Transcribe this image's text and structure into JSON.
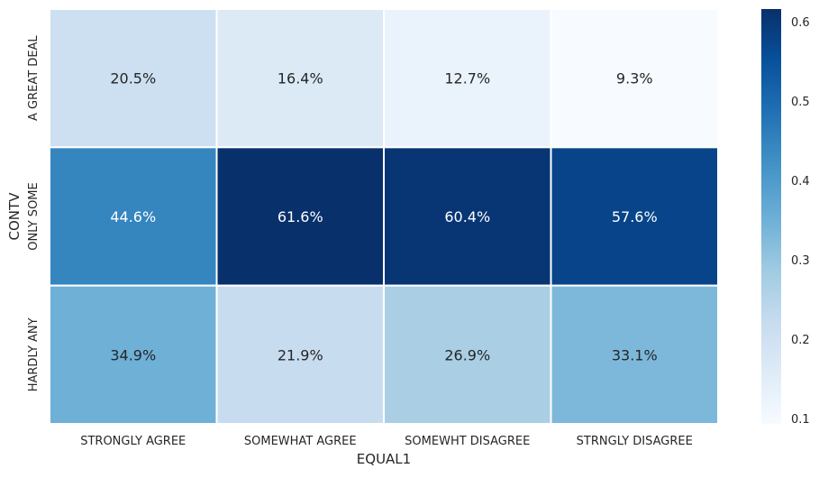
{
  "chart_data": {
    "type": "heatmap",
    "title": "",
    "xlabel": "EQUAL1",
    "ylabel": "CONTV",
    "x_categories": [
      "STRONGLY AGREE",
      "SOMEWHAT AGREE",
      "SOMEWHT DISAGREE",
      "STRNGLY DISAGREE"
    ],
    "y_categories": [
      "A GREAT DEAL",
      "ONLY SOME",
      "HARDLY ANY"
    ],
    "values": [
      [
        0.205,
        0.164,
        0.127,
        0.093
      ],
      [
        0.446,
        0.616,
        0.604,
        0.576
      ],
      [
        0.349,
        0.219,
        0.269,
        0.331
      ]
    ],
    "cell_labels": [
      [
        "20.5%",
        "16.4%",
        "12.7%",
        "9.3%"
      ],
      [
        "44.6%",
        "61.6%",
        "60.4%",
        "57.6%"
      ],
      [
        "34.9%",
        "21.9%",
        "26.9%",
        "33.1%"
      ]
    ],
    "colormap": "Blues",
    "colorbar": {
      "range": [
        0.093,
        0.616
      ],
      "ticks": [
        0.1,
        0.2,
        0.3,
        0.4,
        0.5,
        0.6
      ],
      "tick_labels": [
        "0.1",
        "0.2",
        "0.3",
        "0.4",
        "0.5",
        "0.6"
      ]
    }
  }
}
